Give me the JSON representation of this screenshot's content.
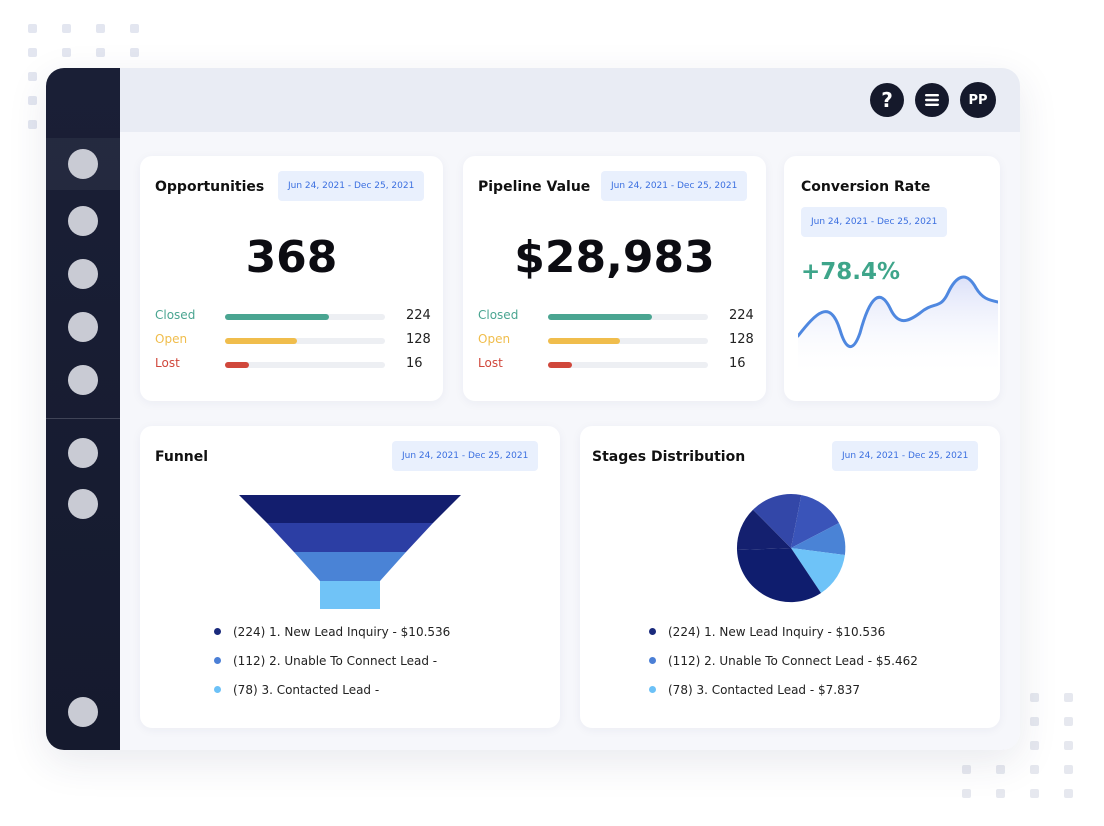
{
  "colors": {
    "sidebar": "#1a1f36",
    "closed": "#4aa591",
    "open": "#f0bd4c",
    "lost": "#d0473b",
    "navy": "#0f1d6e",
    "accent_blue": "#4f88e0",
    "light_blue": "#6cc1f7",
    "conversion_green": "#3ea58a"
  },
  "header": {
    "help_icon": "?",
    "menu_icon": "hamburger-menu-icon",
    "avatar_initials": "PP"
  },
  "opportunities": {
    "title": "Opportunities",
    "date_range": "Jun 24, 2021 - Dec 25, 2021",
    "total": "368",
    "rows": [
      {
        "label": "Closed",
        "count": "224",
        "fraction": 0.65
      },
      {
        "label": "Open",
        "count": "128",
        "fraction": 0.45
      },
      {
        "label": "Lost",
        "count": "16",
        "fraction": 0.15
      }
    ]
  },
  "pipeline": {
    "title": "Pipeline Value",
    "date_range": "Jun 24, 2021 - Dec 25, 2021",
    "total": "$28,983",
    "rows": [
      {
        "label": "Closed",
        "count": "224",
        "fraction": 0.65
      },
      {
        "label": "Open",
        "count": "128",
        "fraction": 0.45
      },
      {
        "label": "Lost",
        "count": "16",
        "fraction": 0.15
      }
    ]
  },
  "conversion": {
    "title": "Conversion Rate",
    "date_range": "Jun 24, 2021 - Dec 25, 2021",
    "value": "+78.4%"
  },
  "funnel": {
    "title": "Funnel",
    "date_range": "Jun 24, 2021 - Dec 25, 2021",
    "legend": [
      {
        "text": "(224) 1. New Lead Inquiry - $10.536",
        "color": "#1a2a7c"
      },
      {
        "text": "(112) 2. Unable To Connect Lead -",
        "color": "#4b7fd6"
      },
      {
        "text": "(78) 3. Contacted Lead -",
        "color": "#6cc1f7"
      }
    ]
  },
  "stages": {
    "title": "Stages Distribution",
    "date_range": "Jun 24, 2021 - Dec 25, 2021",
    "legend": [
      {
        "text": "(224) 1. New Lead Inquiry - $10.536",
        "color": "#1a2a7c"
      },
      {
        "text": "(112) 2. Unable To Connect Lead - $5.462",
        "color": "#4b7fd6"
      },
      {
        "text": "(78) 3. Contacted Lead - $7.837",
        "color": "#6cc1f7"
      }
    ]
  }
}
